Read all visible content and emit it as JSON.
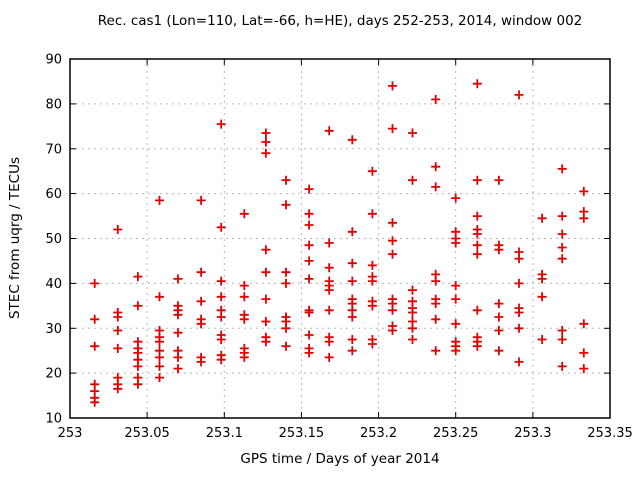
{
  "window_title": "Rec. cas1 (Lon=110, Lat=-66, h=HE), days 252-253, 2014, window 002",
  "chart_data": {
    "type": "scatter",
    "title": "Rec. cas1 (Lon=110, Lat=-66, h=HE), days 252-253, 2014, window 002",
    "xlabel": "GPS time / Days of year 2014",
    "ylabel": "STEC from uqrg / TECUs",
    "xlim": [
      253,
      253.35
    ],
    "ylim": [
      10,
      90
    ],
    "grid": true,
    "legend_position": "none",
    "marker": "plus",
    "marker_color": "#e00000",
    "xticks": [
      {
        "v": 253,
        "label": "253"
      },
      {
        "v": 253.05,
        "label": "253.05"
      },
      {
        "v": 253.1,
        "label": "253.1"
      },
      {
        "v": 253.15,
        "label": "253.15"
      },
      {
        "v": 253.2,
        "label": "253.2"
      },
      {
        "v": 253.25,
        "label": "253.25"
      },
      {
        "v": 253.3,
        "label": "253.3"
      },
      {
        "v": 253.35,
        "label": "253.35"
      }
    ],
    "yticks": [
      {
        "v": 10,
        "label": "10"
      },
      {
        "v": 20,
        "label": "20"
      },
      {
        "v": 30,
        "label": "30"
      },
      {
        "v": 40,
        "label": "40"
      },
      {
        "v": 50,
        "label": "50"
      },
      {
        "v": 60,
        "label": "60"
      },
      {
        "v": 70,
        "label": "70"
      },
      {
        "v": 80,
        "label": "80"
      },
      {
        "v": 90,
        "label": "90"
      }
    ],
    "points": [
      [
        253.016,
        40
      ],
      [
        253.016,
        32
      ],
      [
        253.016,
        26
      ],
      [
        253.016,
        17.5
      ],
      [
        253.016,
        16
      ],
      [
        253.016,
        14.5
      ],
      [
        253.016,
        13.5
      ],
      [
        253.031,
        52
      ],
      [
        253.031,
        33.5
      ],
      [
        253.031,
        32.5
      ],
      [
        253.031,
        29.5
      ],
      [
        253.031,
        25.5
      ],
      [
        253.031,
        19
      ],
      [
        253.031,
        17.5
      ],
      [
        253.031,
        16.5
      ],
      [
        253.044,
        41.5
      ],
      [
        253.044,
        35
      ],
      [
        253.044,
        27
      ],
      [
        253.044,
        25.5
      ],
      [
        253.044,
        24.5
      ],
      [
        253.044,
        23
      ],
      [
        253.044,
        21.5
      ],
      [
        253.044,
        19
      ],
      [
        253.044,
        17.5
      ],
      [
        253.058,
        58.5
      ],
      [
        253.058,
        37
      ],
      [
        253.058,
        29.5
      ],
      [
        253.058,
        28
      ],
      [
        253.058,
        27
      ],
      [
        253.058,
        25
      ],
      [
        253.058,
        23.5
      ],
      [
        253.058,
        21.5
      ],
      [
        253.058,
        19
      ],
      [
        253.07,
        41
      ],
      [
        253.07,
        35
      ],
      [
        253.07,
        34
      ],
      [
        253.07,
        33
      ],
      [
        253.07,
        29
      ],
      [
        253.07,
        25
      ],
      [
        253.07,
        23.5
      ],
      [
        253.07,
        21
      ],
      [
        253.085,
        58.5
      ],
      [
        253.085,
        42.5
      ],
      [
        253.085,
        36
      ],
      [
        253.085,
        32
      ],
      [
        253.085,
        31
      ],
      [
        253.085,
        23.5
      ],
      [
        253.085,
        22.5
      ],
      [
        253.098,
        75.5
      ],
      [
        253.098,
        52.5
      ],
      [
        253.098,
        40.5
      ],
      [
        253.098,
        37
      ],
      [
        253.098,
        34
      ],
      [
        253.098,
        32.5
      ],
      [
        253.098,
        28.5
      ],
      [
        253.098,
        27.5
      ],
      [
        253.098,
        24
      ],
      [
        253.098,
        23
      ],
      [
        253.113,
        55.5
      ],
      [
        253.113,
        39.5
      ],
      [
        253.113,
        37
      ],
      [
        253.113,
        33
      ],
      [
        253.113,
        32
      ],
      [
        253.113,
        25.5
      ],
      [
        253.113,
        24.5
      ],
      [
        253.113,
        23.5
      ],
      [
        253.127,
        73.5
      ],
      [
        253.127,
        71.5
      ],
      [
        253.127,
        69
      ],
      [
        253.127,
        47.5
      ],
      [
        253.127,
        42.5
      ],
      [
        253.127,
        36.5
      ],
      [
        253.127,
        31.5
      ],
      [
        253.127,
        28
      ],
      [
        253.127,
        27
      ],
      [
        253.14,
        63
      ],
      [
        253.14,
        57.5
      ],
      [
        253.14,
        42.5
      ],
      [
        253.14,
        40
      ],
      [
        253.14,
        32.5
      ],
      [
        253.14,
        31.5
      ],
      [
        253.14,
        30
      ],
      [
        253.14,
        26
      ],
      [
        253.155,
        61
      ],
      [
        253.155,
        55.5
      ],
      [
        253.155,
        53
      ],
      [
        253.155,
        48.5
      ],
      [
        253.155,
        45
      ],
      [
        253.155,
        41
      ],
      [
        253.155,
        34
      ],
      [
        253.155,
        33.5
      ],
      [
        253.155,
        28.5
      ],
      [
        253.155,
        25.5
      ],
      [
        253.155,
        24.5
      ],
      [
        253.168,
        74
      ],
      [
        253.168,
        49
      ],
      [
        253.168,
        43.5
      ],
      [
        253.168,
        40.5
      ],
      [
        253.168,
        39.5
      ],
      [
        253.168,
        38.5
      ],
      [
        253.168,
        34
      ],
      [
        253.168,
        28
      ],
      [
        253.168,
        27
      ],
      [
        253.168,
        23.5
      ],
      [
        253.183,
        72
      ],
      [
        253.183,
        51.5
      ],
      [
        253.183,
        44.5
      ],
      [
        253.183,
        40.5
      ],
      [
        253.183,
        36.5
      ],
      [
        253.183,
        35.5
      ],
      [
        253.183,
        34
      ],
      [
        253.183,
        32.5
      ],
      [
        253.183,
        27.5
      ],
      [
        253.183,
        25
      ],
      [
        253.196,
        65
      ],
      [
        253.196,
        55.5
      ],
      [
        253.196,
        44
      ],
      [
        253.196,
        41.5
      ],
      [
        253.196,
        40.5
      ],
      [
        253.196,
        36
      ],
      [
        253.196,
        35
      ],
      [
        253.196,
        27.5
      ],
      [
        253.196,
        26.5
      ],
      [
        253.209,
        84
      ],
      [
        253.209,
        74.5
      ],
      [
        253.209,
        53.5
      ],
      [
        253.209,
        49.5
      ],
      [
        253.209,
        46.5
      ],
      [
        253.209,
        36.5
      ],
      [
        253.209,
        35.5
      ],
      [
        253.209,
        34
      ],
      [
        253.209,
        30.5
      ],
      [
        253.209,
        29.5
      ],
      [
        253.222,
        73.5
      ],
      [
        253.222,
        63
      ],
      [
        253.222,
        38.5
      ],
      [
        253.222,
        36
      ],
      [
        253.222,
        34.5
      ],
      [
        253.222,
        33.5
      ],
      [
        253.222,
        31.5
      ],
      [
        253.222,
        30
      ],
      [
        253.222,
        27.5
      ],
      [
        253.237,
        81
      ],
      [
        253.237,
        66
      ],
      [
        253.237,
        61.5
      ],
      [
        253.237,
        42
      ],
      [
        253.237,
        40.5
      ],
      [
        253.237,
        36.5
      ],
      [
        253.237,
        35.5
      ],
      [
        253.237,
        32
      ],
      [
        253.237,
        25
      ],
      [
        253.25,
        59
      ],
      [
        253.25,
        51.5
      ],
      [
        253.25,
        50
      ],
      [
        253.25,
        49
      ],
      [
        253.25,
        39.5
      ],
      [
        253.25,
        36.5
      ],
      [
        253.25,
        31
      ],
      [
        253.25,
        27
      ],
      [
        253.25,
        26
      ],
      [
        253.25,
        25
      ],
      [
        253.264,
        84.5
      ],
      [
        253.264,
        63
      ],
      [
        253.264,
        55
      ],
      [
        253.264,
        52
      ],
      [
        253.264,
        51
      ],
      [
        253.264,
        48.5
      ],
      [
        253.264,
        46.5
      ],
      [
        253.264,
        34
      ],
      [
        253.264,
        28
      ],
      [
        253.264,
        27
      ],
      [
        253.264,
        26
      ],
      [
        253.278,
        63
      ],
      [
        253.278,
        48.5
      ],
      [
        253.278,
        47.5
      ],
      [
        253.278,
        35.5
      ],
      [
        253.278,
        32.5
      ],
      [
        253.278,
        29.5
      ],
      [
        253.278,
        25
      ],
      [
        253.291,
        82
      ],
      [
        253.291,
        47
      ],
      [
        253.291,
        45.5
      ],
      [
        253.291,
        40
      ],
      [
        253.291,
        34.5
      ],
      [
        253.291,
        33.5
      ],
      [
        253.291,
        30
      ],
      [
        253.291,
        22.5
      ],
      [
        253.306,
        54.5
      ],
      [
        253.306,
        42
      ],
      [
        253.306,
        41
      ],
      [
        253.306,
        37
      ],
      [
        253.306,
        27.5
      ],
      [
        253.319,
        65.5
      ],
      [
        253.319,
        55
      ],
      [
        253.319,
        51
      ],
      [
        253.319,
        48
      ],
      [
        253.319,
        45.5
      ],
      [
        253.319,
        29.5
      ],
      [
        253.319,
        27.5
      ],
      [
        253.319,
        21.5
      ],
      [
        253.333,
        60.5
      ],
      [
        253.333,
        56
      ],
      [
        253.333,
        54.5
      ],
      [
        253.333,
        31
      ],
      [
        253.333,
        24.5
      ],
      [
        253.333,
        21
      ]
    ]
  }
}
